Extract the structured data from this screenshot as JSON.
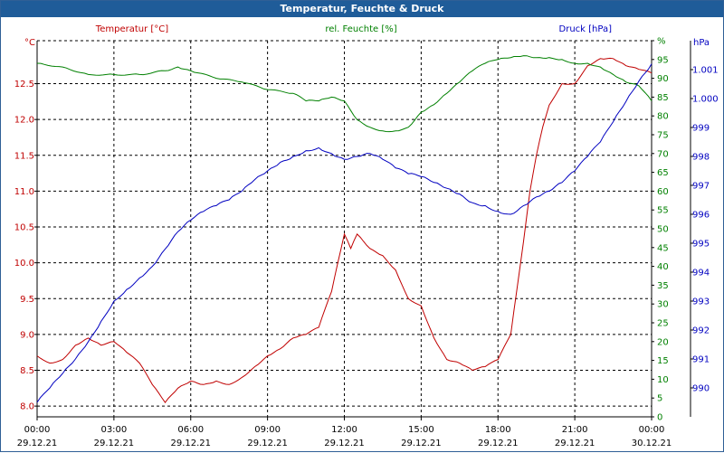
{
  "window": {
    "title": "Temperatur, Feuchte & Druck"
  },
  "colors": {
    "temperature": "#c00000",
    "humidity": "#008000",
    "pressure": "#0000c0",
    "grid": "#000000"
  },
  "chart_data": {
    "type": "line",
    "title": "Temperatur, Feuchte & Druck",
    "grid": true,
    "x_axis": {
      "ticks": [
        {
          "time": "00:00",
          "date": "29.12.21"
        },
        {
          "time": "03:00",
          "date": "29.12.21"
        },
        {
          "time": "06:00",
          "date": "29.12.21"
        },
        {
          "time": "09:00",
          "date": "29.12.21"
        },
        {
          "time": "12:00",
          "date": "29.12.21"
        },
        {
          "time": "15:00",
          "date": "29.12.21"
        },
        {
          "time": "18:00",
          "date": "29.12.21"
        },
        {
          "time": "21:00",
          "date": "29.12.21"
        },
        {
          "time": "00:00",
          "date": "30.12.21"
        }
      ],
      "range_hours": [
        0,
        24
      ]
    },
    "axes": {
      "temperature": {
        "unit": "°C",
        "header": "Temperatur [°C]",
        "ylim": [
          7.85,
          13.1
        ],
        "ticks": [
          "8.0",
          "8.5",
          "9.0",
          "9.5",
          "10.0",
          "10.5",
          "11.0",
          "11.5",
          "12.0",
          "12.5"
        ]
      },
      "humidity": {
        "unit": "%",
        "header": "rel. Feuchte [%]",
        "ylim": [
          0,
          100
        ],
        "ticks": [
          "0",
          "5",
          "10",
          "15",
          "20",
          "25",
          "30",
          "35",
          "40",
          "45",
          "50",
          "55",
          "60",
          "65",
          "70",
          "75",
          "80",
          "85",
          "90",
          "95",
          "%"
        ]
      },
      "pressure": {
        "unit": "hPa",
        "header": "Druck [hPa]",
        "ylim": [
          989.0,
          1002.0
        ],
        "ticks": [
          {
            "v": 990,
            "label": "990"
          },
          {
            "v": 991,
            "label": "991"
          },
          {
            "v": 992,
            "label": "992"
          },
          {
            "v": 993,
            "label": "993"
          },
          {
            "v": 994,
            "label": "994"
          },
          {
            "v": 995,
            "label": "995"
          },
          {
            "v": 996,
            "label": "996"
          },
          {
            "v": 997,
            "label": "997"
          },
          {
            "v": 998,
            "label": "998"
          },
          {
            "v": 999,
            "label": "999"
          },
          {
            "v": 1000,
            "label": "1.000"
          },
          {
            "v": 1001,
            "label": "1.001"
          }
        ]
      }
    },
    "series": [
      {
        "name": "Temperatur [°C]",
        "axis": "temperature",
        "x": [
          0,
          0.5,
          1,
          1.5,
          2,
          2.5,
          3,
          3.5,
          4,
          4.5,
          5,
          5.5,
          6,
          6.5,
          7,
          7.5,
          8,
          8.5,
          9,
          9.5,
          10,
          10.5,
          11,
          11.5,
          12,
          12.25,
          12.5,
          13,
          13.5,
          14,
          14.5,
          15,
          15.5,
          16,
          16.5,
          17,
          17.5,
          18,
          18.5,
          19,
          19.25,
          19.5,
          19.75,
          20,
          20.5,
          21,
          21.5,
          22,
          22.5,
          23,
          23.5,
          24
        ],
        "values": [
          8.7,
          8.6,
          8.65,
          8.85,
          8.95,
          8.85,
          8.9,
          8.75,
          8.6,
          8.3,
          8.05,
          8.25,
          8.35,
          8.3,
          8.35,
          8.3,
          8.4,
          8.55,
          8.7,
          8.8,
          8.95,
          9.0,
          9.1,
          9.6,
          10.4,
          10.2,
          10.4,
          10.2,
          10.1,
          9.9,
          9.5,
          9.4,
          8.95,
          8.65,
          8.6,
          8.5,
          8.55,
          8.65,
          9.0,
          10.3,
          11.0,
          11.5,
          11.9,
          12.2,
          12.5,
          12.5,
          12.75,
          12.85,
          12.85,
          12.75,
          12.7,
          12.65
        ]
      },
      {
        "name": "rel. Feuchte [%]",
        "axis": "humidity",
        "x": [
          0,
          1,
          2,
          3,
          4,
          5,
          5.5,
          6,
          7,
          8,
          9,
          10,
          10.5,
          11,
          11.5,
          12,
          12.5,
          13,
          13.5,
          14,
          14.5,
          15,
          15.5,
          16,
          16.5,
          17,
          17.5,
          18,
          18.5,
          19,
          19.5,
          20,
          20.5,
          21,
          21.5,
          22,
          22.5,
          23,
          23.5,
          24
        ],
        "values": [
          94,
          93,
          91,
          91,
          91,
          92,
          93,
          92,
          90,
          89,
          87,
          86,
          84,
          84,
          85,
          84,
          79,
          77,
          76,
          76,
          77,
          81,
          83,
          86,
          89,
          92,
          94,
          95,
          95.5,
          96,
          95.5,
          95.5,
          95,
          94,
          94,
          93,
          91,
          89,
          88,
          84
        ]
      },
      {
        "name": "Druck [hPa]",
        "axis": "pressure",
        "x": [
          0,
          0.5,
          1,
          1.5,
          2,
          2.5,
          3,
          3.5,
          4,
          4.5,
          5,
          5.5,
          6,
          6.5,
          7,
          7.5,
          8,
          8.5,
          9,
          9.5,
          10,
          10.5,
          11,
          11.5,
          12,
          12.5,
          13,
          13.5,
          14,
          14.5,
          15,
          15.5,
          16,
          16.5,
          17,
          17.5,
          18,
          18.5,
          19,
          19.5,
          20,
          20.5,
          21,
          21.5,
          22,
          22.5,
          23,
          23.5,
          24
        ],
        "values": [
          989.5,
          990.0,
          990.5,
          991.0,
          991.6,
          992.3,
          993.0,
          993.4,
          993.8,
          994.2,
          994.8,
          995.4,
          995.8,
          996.1,
          996.3,
          996.5,
          996.8,
          997.2,
          997.5,
          997.8,
          998.0,
          998.2,
          998.3,
          998.1,
          997.9,
          998.0,
          998.1,
          997.9,
          997.6,
          997.4,
          997.3,
          997.1,
          996.9,
          996.7,
          996.4,
          996.3,
          996.1,
          996.0,
          996.3,
          996.6,
          996.8,
          997.1,
          997.5,
          998.0,
          998.5,
          999.2,
          999.9,
          1000.6,
          1001.2
        ]
      }
    ]
  }
}
